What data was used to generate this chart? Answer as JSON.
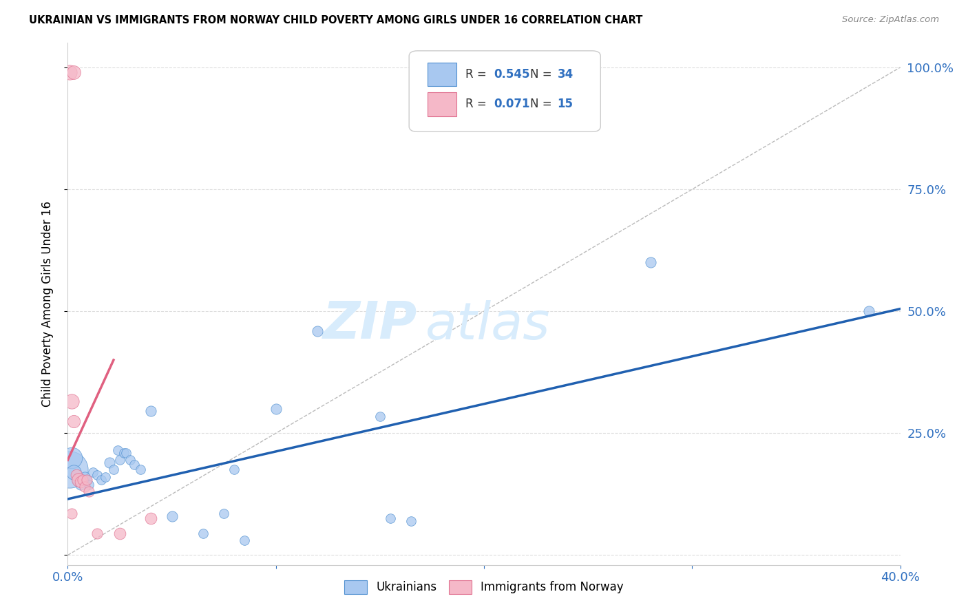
{
  "title": "UKRAINIAN VS IMMIGRANTS FROM NORWAY CHILD POVERTY AMONG GIRLS UNDER 16 CORRELATION CHART",
  "source": "Source: ZipAtlas.com",
  "ylabel": "Child Poverty Among Girls Under 16",
  "yticks": [
    0.0,
    0.25,
    0.5,
    0.75,
    1.0
  ],
  "ytick_labels": [
    "",
    "25.0%",
    "50.0%",
    "75.0%",
    "100.0%"
  ],
  "xlim": [
    0.0,
    0.4
  ],
  "ylim": [
    -0.02,
    1.05
  ],
  "legend_r_blue": "0.545",
  "legend_n_blue": "34",
  "legend_r_pink": "0.071",
  "legend_n_pink": "15",
  "legend_label_blue": "Ukrainians",
  "legend_label_pink": "Immigrants from Norway",
  "blue_color": "#A8C8F0",
  "pink_color": "#F5B8C8",
  "blue_edge_color": "#5090D0",
  "pink_edge_color": "#E07090",
  "blue_line_color": "#2060B0",
  "pink_line_color": "#E06080",
  "ref_line_color": "#BBBBBB",
  "text_blue": "#3070C0",
  "watermark": "ZIPatlas",
  "watermark_color": "#D8ECFC",
  "background_color": "#FFFFFF",
  "grid_color": "#DDDDDD",
  "blue_points": [
    [
      0.001,
      0.175,
      35
    ],
    [
      0.002,
      0.2,
      20
    ],
    [
      0.003,
      0.17,
      14
    ],
    [
      0.005,
      0.155,
      12
    ],
    [
      0.006,
      0.145,
      10
    ],
    [
      0.008,
      0.16,
      10
    ],
    [
      0.009,
      0.155,
      9
    ],
    [
      0.01,
      0.145,
      9
    ],
    [
      0.012,
      0.17,
      9
    ],
    [
      0.014,
      0.165,
      9
    ],
    [
      0.016,
      0.155,
      9
    ],
    [
      0.018,
      0.16,
      9
    ],
    [
      0.02,
      0.19,
      10
    ],
    [
      0.022,
      0.175,
      9
    ],
    [
      0.024,
      0.215,
      9
    ],
    [
      0.025,
      0.195,
      9
    ],
    [
      0.027,
      0.21,
      9
    ],
    [
      0.028,
      0.21,
      9
    ],
    [
      0.03,
      0.195,
      9
    ],
    [
      0.032,
      0.185,
      9
    ],
    [
      0.035,
      0.175,
      9
    ],
    [
      0.04,
      0.295,
      10
    ],
    [
      0.05,
      0.08,
      10
    ],
    [
      0.065,
      0.045,
      9
    ],
    [
      0.075,
      0.085,
      9
    ],
    [
      0.08,
      0.175,
      9
    ],
    [
      0.085,
      0.03,
      9
    ],
    [
      0.1,
      0.3,
      10
    ],
    [
      0.12,
      0.46,
      10
    ],
    [
      0.15,
      0.285,
      9
    ],
    [
      0.155,
      0.075,
      9
    ],
    [
      0.165,
      0.07,
      9
    ],
    [
      0.28,
      0.6,
      10
    ],
    [
      0.385,
      0.5,
      10
    ]
  ],
  "pink_points": [
    [
      0.001,
      0.99,
      14
    ],
    [
      0.003,
      0.99,
      13
    ],
    [
      0.002,
      0.315,
      14
    ],
    [
      0.003,
      0.275,
      12
    ],
    [
      0.004,
      0.165,
      11
    ],
    [
      0.005,
      0.155,
      13
    ],
    [
      0.006,
      0.15,
      11
    ],
    [
      0.007,
      0.155,
      10
    ],
    [
      0.008,
      0.14,
      10
    ],
    [
      0.009,
      0.155,
      10
    ],
    [
      0.01,
      0.13,
      10
    ],
    [
      0.014,
      0.045,
      10
    ],
    [
      0.025,
      0.045,
      11
    ],
    [
      0.04,
      0.075,
      11
    ],
    [
      0.002,
      0.085,
      10
    ]
  ],
  "blue_trend_x": [
    0.0,
    0.4
  ],
  "blue_trend_y": [
    0.115,
    0.505
  ],
  "pink_trend_x": [
    0.0,
    0.022
  ],
  "pink_trend_y": [
    0.195,
    0.4
  ],
  "ref_line_x": [
    0.0,
    0.4
  ],
  "ref_line_y": [
    0.0,
    1.0
  ]
}
